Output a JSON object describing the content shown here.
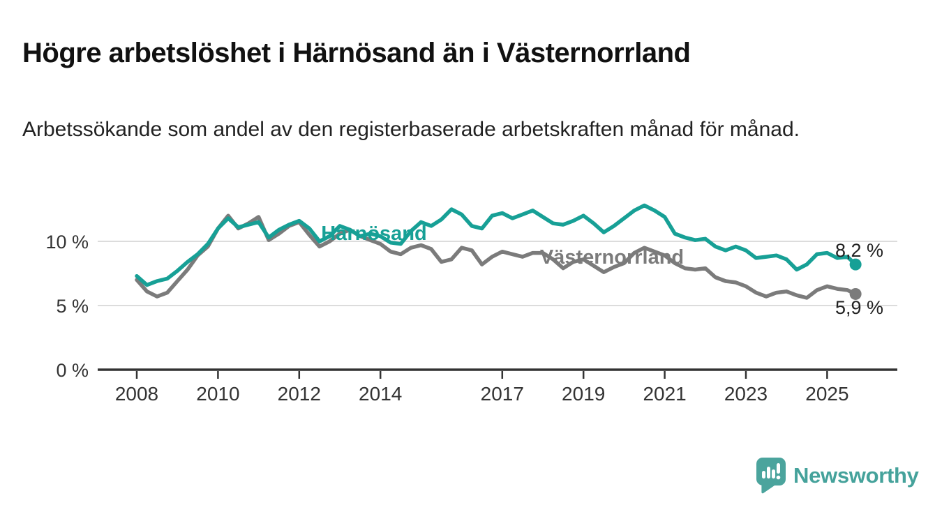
{
  "header": {
    "title": "Högre arbetslöshet i Härnösand än i Västernorrland",
    "subtitle": "Arbetssökande som andel av den registerbaserade arbetskraften månad för månad."
  },
  "chart_data": {
    "type": "line",
    "x_unit": "year (monthly series shown, sampled quarterly)",
    "xlim": [
      2007.05,
      2026.7
    ],
    "ylim": [
      0,
      13.5
    ],
    "grid": "horizontal-only",
    "legend_position": "inline-labels-on-lines",
    "x_ticks": [
      2008,
      2010,
      2012,
      2014,
      2017,
      2019,
      2021,
      2023,
      2025
    ],
    "y_ticks": [
      {
        "value": 0,
        "label": "0 %"
      },
      {
        "value": 5,
        "label": "5 %"
      },
      {
        "value": 10,
        "label": "10 %"
      }
    ],
    "x": [
      2008,
      2008.25,
      2008.5,
      2008.75,
      2009,
      2009.25,
      2009.5,
      2009.75,
      2010,
      2010.25,
      2010.5,
      2010.75,
      2011,
      2011.25,
      2011.5,
      2011.75,
      2012,
      2012.25,
      2012.5,
      2012.75,
      2013,
      2013.25,
      2013.5,
      2013.75,
      2014,
      2014.25,
      2014.5,
      2014.75,
      2015,
      2015.25,
      2015.5,
      2015.75,
      2016,
      2016.25,
      2016.5,
      2016.75,
      2017,
      2017.25,
      2017.5,
      2017.75,
      2018,
      2018.25,
      2018.5,
      2018.75,
      2019,
      2019.25,
      2019.5,
      2019.75,
      2020,
      2020.25,
      2020.5,
      2020.75,
      2021,
      2021.25,
      2021.5,
      2021.75,
      2022,
      2022.25,
      2022.5,
      2022.75,
      2023,
      2023.25,
      2023.5,
      2023.75,
      2024,
      2024.25,
      2024.5,
      2024.75,
      2025,
      2025.25,
      2025.5,
      2025.7
    ],
    "series": [
      {
        "name": "Västernorrland",
        "color": "#7b7b7b",
        "end_label": "5,9 %",
        "end_value": 5.9,
        "values": [
          7.0,
          6.1,
          5.7,
          6.0,
          6.9,
          7.8,
          8.9,
          9.6,
          11.0,
          12.0,
          11.0,
          11.4,
          11.9,
          10.1,
          10.6,
          11.2,
          11.5,
          10.5,
          9.6,
          10.0,
          10.6,
          10.9,
          10.4,
          10.1,
          9.8,
          9.2,
          9.0,
          9.5,
          9.7,
          9.4,
          8.4,
          8.6,
          9.5,
          9.3,
          8.2,
          8.8,
          9.2,
          9.0,
          8.8,
          9.1,
          9.1,
          8.6,
          7.9,
          8.4,
          8.6,
          8.1,
          7.6,
          8.0,
          8.3,
          9.1,
          9.5,
          9.2,
          8.9,
          8.3,
          7.9,
          7.8,
          7.9,
          7.2,
          6.9,
          6.8,
          6.5,
          6.0,
          5.7,
          6.0,
          6.1,
          5.8,
          5.6,
          6.2,
          6.5,
          6.3,
          6.2,
          5.9
        ]
      },
      {
        "name": "Härnösand",
        "color": "#17a096",
        "end_label": "8,2 %",
        "end_value": 8.2,
        "values": [
          7.3,
          6.6,
          6.9,
          7.1,
          7.7,
          8.4,
          9.0,
          9.8,
          11.0,
          11.8,
          11.1,
          11.3,
          11.5,
          10.3,
          10.9,
          11.3,
          11.6,
          11.0,
          10.0,
          10.4,
          11.2,
          10.9,
          10.4,
          10.6,
          10.4,
          9.9,
          9.8,
          10.8,
          11.5,
          11.2,
          11.7,
          12.5,
          12.1,
          11.2,
          11.0,
          12.0,
          12.2,
          11.8,
          12.1,
          12.4,
          11.9,
          11.4,
          11.3,
          11.6,
          12.0,
          11.4,
          10.7,
          11.2,
          11.8,
          12.4,
          12.8,
          12.4,
          11.9,
          10.6,
          10.3,
          10.1,
          10.2,
          9.6,
          9.3,
          9.6,
          9.3,
          8.7,
          8.8,
          8.9,
          8.6,
          7.8,
          8.2,
          9.0,
          9.1,
          8.7,
          8.8,
          8.2
        ]
      }
    ],
    "colors": {
      "grid": "#dcdcdc",
      "axis": "#333333",
      "tick_text": "#333333",
      "end_label_text": "#222222"
    }
  },
  "logo": {
    "brand": "Newsworthy",
    "color": "#45a29b",
    "icon": "bar-chart-speech-bubble-icon"
  }
}
